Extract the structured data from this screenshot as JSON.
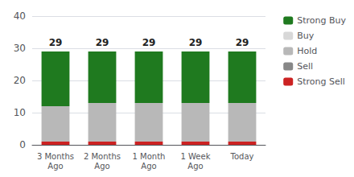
{
  "chart_data": {
    "type": "bar",
    "stacked": true,
    "categories": [
      "3 Months\nAgo",
      "2 Months\nAgo",
      "1 Month\nAgo",
      "1 Week\nAgo",
      "Today"
    ],
    "series": [
      {
        "name": "Strong Sell",
        "color": "#cc2222",
        "values": [
          1,
          1,
          1,
          1,
          1
        ]
      },
      {
        "name": "Sell",
        "color": "#888888",
        "values": [
          0,
          0,
          0,
          0,
          0
        ]
      },
      {
        "name": "Hold",
        "color": "#b8b8b8",
        "values": [
          11,
          12,
          12,
          12,
          12
        ]
      },
      {
        "name": "Buy",
        "color": "#d8d8d8",
        "values": [
          0,
          0,
          0,
          0,
          0
        ]
      },
      {
        "name": "Strong Buy",
        "color": "#1f7a1f",
        "values": [
          17,
          16,
          16,
          16,
          16
        ]
      }
    ],
    "totals": [
      29,
      29,
      29,
      29,
      29
    ],
    "ylim": [
      0,
      40
    ],
    "yticks": [
      0,
      10,
      20,
      30,
      40
    ],
    "grid": true,
    "legend": "right"
  }
}
